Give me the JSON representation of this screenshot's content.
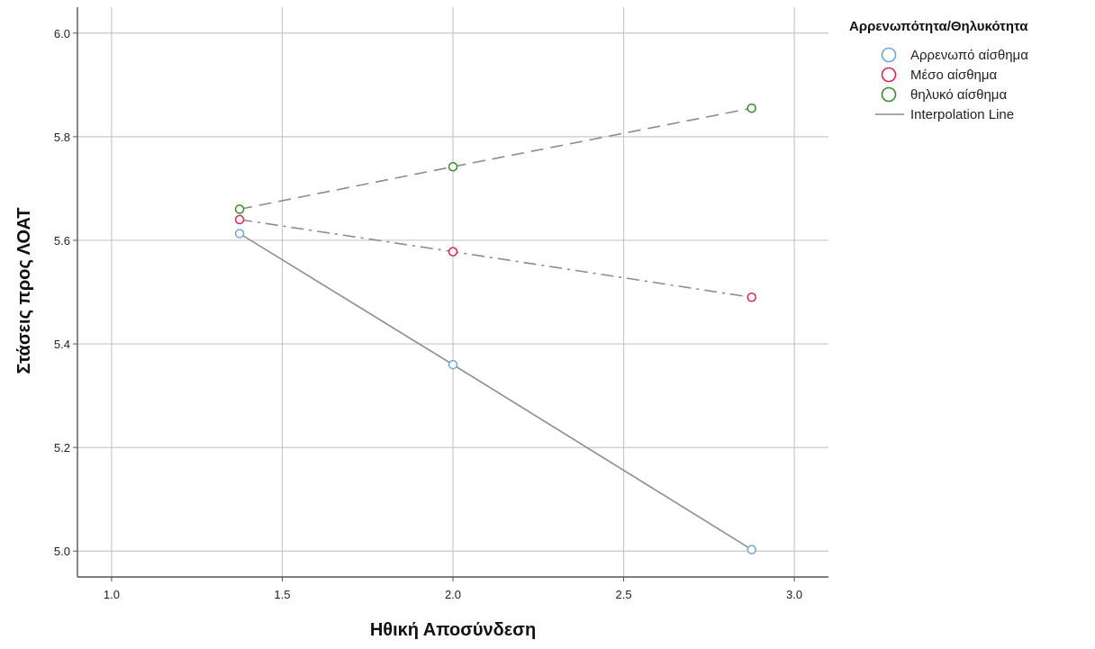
{
  "chart_data": {
    "type": "line",
    "xlabel": "Ηθική Αποσύνδεση",
    "ylabel": "Στάσεις προς ΛΟΑΤ",
    "xlim": [
      0.9,
      3.1
    ],
    "ylim": [
      4.95,
      6.05
    ],
    "xticks": [
      1.0,
      1.5,
      2.0,
      2.5,
      3.0
    ],
    "xtick_labels": [
      "1.0",
      "1.5",
      "2.0",
      "2.5",
      "3.0"
    ],
    "yticks": [
      5.0,
      5.2,
      5.4,
      5.6,
      5.8,
      6.0
    ],
    "ytick_labels": [
      "5.0",
      "5.2",
      "5.4",
      "5.6",
      "5.8",
      "6.0"
    ],
    "grid": true,
    "legend": {
      "title": "Αρρενωπότητα/Θηλυκότητα",
      "placement": "right",
      "interpolation_label": "Interpolation Line",
      "interpolation_color": "#8c8c8c"
    },
    "x": [
      1.375,
      2.0,
      2.875
    ],
    "series": [
      {
        "name": "Αρρενωπό αίσθημα",
        "marker_color": "#6fa8dc",
        "line_style": "solid",
        "values": [
          5.613,
          5.36,
          5.003
        ]
      },
      {
        "name": "Μέσο αίσθημα",
        "marker_color": "#d6274d",
        "line_style": "dashdot",
        "values": [
          5.64,
          5.578,
          5.49
        ]
      },
      {
        "name": "θηλυκό αίσθημα",
        "marker_color": "#3a8a2c",
        "line_style": "dashed",
        "values": [
          5.66,
          5.742,
          5.855
        ]
      }
    ]
  }
}
